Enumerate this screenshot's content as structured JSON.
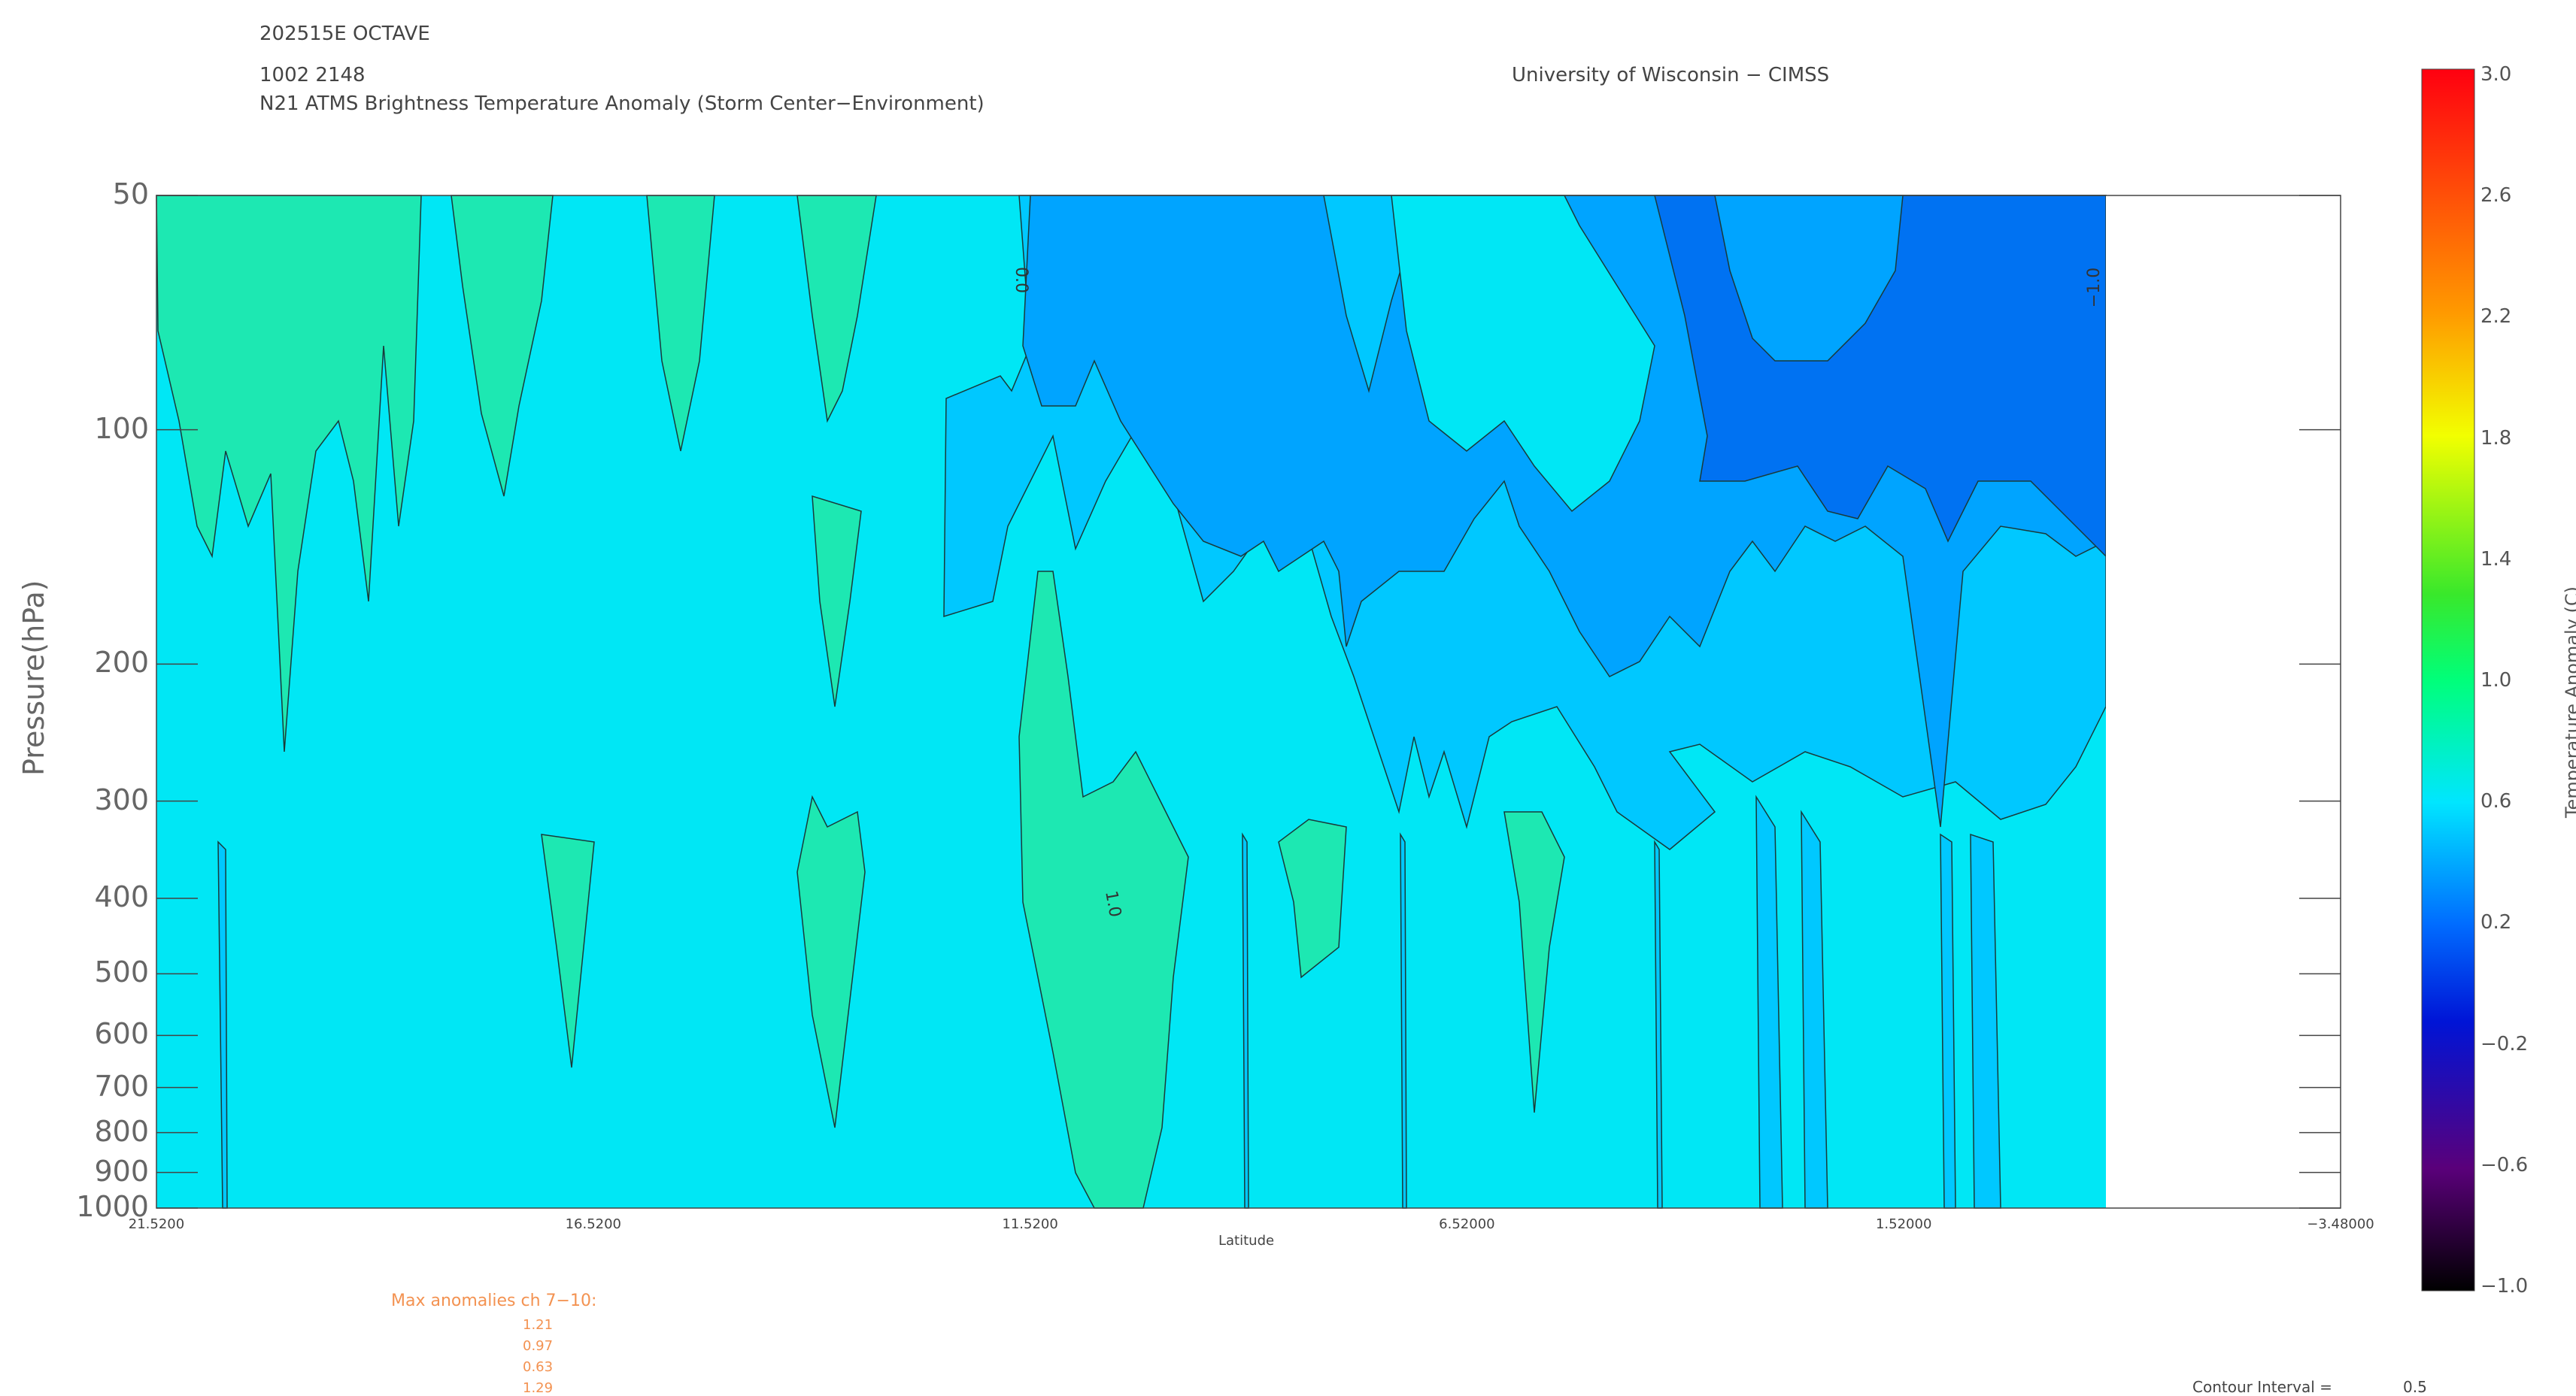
{
  "header": {
    "storm": "202515E OCTAVE",
    "date_time": "1002 2148",
    "product": "N21 ATMS Brightness Temperature Anomaly (Storm Center−Environment)",
    "institution": "University of Wisconsin − CIMSS"
  },
  "footer": {
    "max_title": "Max anomalies ch 7−10:",
    "max_values": [
      "1.21",
      "0.97",
      "0.63",
      "1.29"
    ],
    "contour_label": "Contour Interval =",
    "contour_value": "0.5"
  },
  "chart_data": {
    "type": "heatmap",
    "xlabel": "Latitude",
    "ylabel": "Pressure(hPa)",
    "x_tick_labels": [
      "21.5200",
      "16.5200",
      "11.5200",
      "6.52000",
      "1.52000",
      "−3.48000"
    ],
    "x_range": [
      21.52,
      -3.48
    ],
    "y_tick_labels": [
      "50",
      "100",
      "200",
      "300",
      "400",
      "500",
      "600",
      "700",
      "800",
      "900",
      "1000"
    ],
    "y_scale": "log",
    "y_range": [
      1000,
      50
    ],
    "data_extent_x": [
      21.52,
      -0.8
    ],
    "colorbar": {
      "label": "Temperature Anomaly (C)",
      "ticks": [
        "3.0",
        "2.6",
        "2.2",
        "1.8",
        "1.4",
        "1.0",
        "0.6",
        "0.2",
        "−0.2",
        "−0.6",
        "−1.0"
      ],
      "range": [
        -1.0,
        3.0
      ]
    },
    "contour_labels": [
      "1.0",
      "0.0",
      "−1.0"
    ],
    "regions": [
      {
        "level": "1.0 to 1.5",
        "color": "#1de8b2",
        "description": "warm anomaly columns"
      },
      {
        "level": "0.5 to 1.0",
        "color": "#00e7f5",
        "description": "background"
      },
      {
        "level": "0.0 to 0.5",
        "color": "#00c8ff",
        "description": "upper levels south"
      },
      {
        "level": "-0.5 to 0.0",
        "color": "#00a4ff",
        "description": "upper levels near equator"
      },
      {
        "level": "-1.0 to -0.5",
        "color": "#0072f2",
        "description": "top-right corner"
      }
    ]
  }
}
